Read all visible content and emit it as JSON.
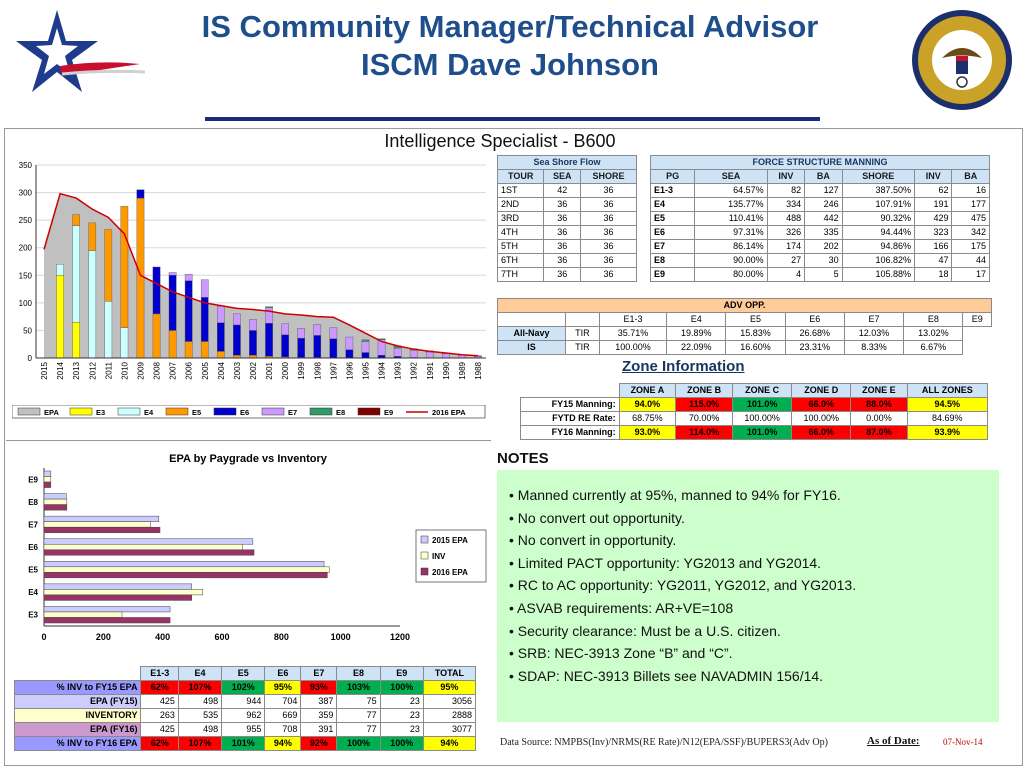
{
  "title_line1": "IS Community Manager/Technical Advisor",
  "title_line2": "ISCM Dave Johnson",
  "main_title": "Intelligence Specialist - B600",
  "colors": {
    "title_blue": "#1f4e8c",
    "epa_gray": "#c0c0c0",
    "e3_yellow": "#ffff00",
    "e4_lightblue": "#ccffff",
    "e5_orange": "#ff9900",
    "e6_blue": "#0000cc",
    "e7_lavender": "#cc99ff",
    "e8_green": "#339966",
    "e9_maroon": "#800000",
    "epa2016_red": "#cc0000",
    "red": "#ff0000",
    "green": "#00b050",
    "yellow": "#ffff00"
  },
  "sea_shore": {
    "caption": "Sea Shore Flow",
    "headers": [
      "TOUR",
      "SEA",
      "SHORE"
    ],
    "rows": [
      [
        "1ST",
        "42",
        "36"
      ],
      [
        "2ND",
        "36",
        "36"
      ],
      [
        "3RD",
        "36",
        "36"
      ],
      [
        "4TH",
        "36",
        "36"
      ],
      [
        "5TH",
        "36",
        "36"
      ],
      [
        "6TH",
        "36",
        "36"
      ],
      [
        "7TH",
        "36",
        "36"
      ]
    ]
  },
  "force_structure": {
    "caption": "FORCE STRUCTURE MANNING",
    "headers": [
      "PG",
      "SEA",
      "INV",
      "BA",
      "SHORE",
      "INV",
      "BA"
    ],
    "rows": [
      [
        "E1-3",
        "64.57%",
        "82",
        "127",
        "387.50%",
        "62",
        "16"
      ],
      [
        "E4",
        "135.77%",
        "334",
        "246",
        "107.91%",
        "191",
        "177"
      ],
      [
        "E5",
        "110.41%",
        "488",
        "442",
        "90.32%",
        "429",
        "475"
      ],
      [
        "E6",
        "97.31%",
        "326",
        "335",
        "94.44%",
        "323",
        "342"
      ],
      [
        "E7",
        "86.14%",
        "174",
        "202",
        "94.86%",
        "166",
        "175"
      ],
      [
        "E8",
        "90.00%",
        "27",
        "30",
        "106.82%",
        "47",
        "44"
      ],
      [
        "E9",
        "80.00%",
        "4",
        "5",
        "105.88%",
        "18",
        "17"
      ]
    ]
  },
  "adv_opp": {
    "caption": "ADV OPP.",
    "headers": [
      "",
      "",
      "E1-3",
      "E4",
      "E5",
      "E6",
      "E7",
      "E8",
      "E9"
    ],
    "rows": [
      [
        "All-Navy",
        "TIR",
        "35.71%",
        "19.89%",
        "15.83%",
        "26.68%",
        "12.03%",
        "13.02%"
      ],
      [
        "IS",
        "TIR",
        "100.00%",
        "22.09%",
        "16.60%",
        "23.31%",
        "8.33%",
        "6.67%"
      ]
    ]
  },
  "zone_info": {
    "caption": "Zone Information",
    "headers": [
      "",
      "ZONE A",
      "ZONE B",
      "ZONE C",
      "ZONE D",
      "ZONE E",
      "ALL ZONES"
    ],
    "rows": [
      {
        "label": "FY15 Manning:",
        "cells": [
          "94.0%",
          "115.0%",
          "101.0%",
          "66.0%",
          "88.0%",
          "94.5%"
        ],
        "fills": [
          "yellow",
          "red",
          "green",
          "red",
          "red",
          "yellow"
        ]
      },
      {
        "label": "FYTD RE Rate:",
        "cells": [
          "68.75%",
          "70.00%",
          "100.00%",
          "100.00%",
          "0.00%",
          "84.69%"
        ],
        "fills": [
          "",
          "",
          "",
          "",
          "",
          ""
        ]
      },
      {
        "label": "FY16 Manning:",
        "cells": [
          "93.0%",
          "114.0%",
          "101.0%",
          "66.0%",
          "87.0%",
          "93.9%"
        ],
        "fills": [
          "yellow",
          "red",
          "green",
          "red",
          "red",
          "yellow"
        ]
      }
    ]
  },
  "notes": {
    "heading": "NOTES",
    "items": [
      "• Manned currently at 95%, manned to 94% for FY16.",
      "• No convert out opportunity.",
      "• No convert in opportunity.",
      "• Limited PACT opportunity:  YG2013 and YG2014.",
      "• RC to AC opportunity: YG2011, YG2012, and YG2013.",
      "• ASVAB requirements: AR+VE=108",
      "• Security clearance:  Must be a U.S. citizen.",
      "• SRB: NEC-3913 Zone “B” and “C”.",
      "• SDAP: NEC-3913 Billets see NAVADMIN 156/14."
    ]
  },
  "summary_table": {
    "headers": [
      "",
      "E1-3",
      "E4",
      "E5",
      "E6",
      "E7",
      "E8",
      "E9",
      "TOTAL"
    ],
    "rows": [
      {
        "label": "% INV to FY15 EPA",
        "cells": [
          "62%",
          "107%",
          "102%",
          "95%",
          "93%",
          "103%",
          "100%",
          "95%"
        ],
        "fills": [
          "red",
          "red",
          "green",
          "yellow",
          "red",
          "green",
          "green",
          "yellow"
        ],
        "label_bg": "#9999ff"
      },
      {
        "label": "EPA (FY15)",
        "cells": [
          "425",
          "498",
          "944",
          "704",
          "387",
          "75",
          "23",
          "3056"
        ],
        "fills": [
          "",
          "",
          "",
          "",
          "",
          "",
          "",
          ""
        ],
        "label_bg": "#ccccff"
      },
      {
        "label": "INVENTORY",
        "cells": [
          "263",
          "535",
          "962",
          "669",
          "359",
          "77",
          "23",
          "2888"
        ],
        "fills": [
          "",
          "",
          "",
          "",
          "",
          "",
          "",
          ""
        ],
        "label_bg": "#ffffcc"
      },
      {
        "label": "EPA (FY16)",
        "cells": [
          "425",
          "498",
          "955",
          "708",
          "391",
          "77",
          "23",
          "3077"
        ],
        "fills": [
          "",
          "",
          "",
          "",
          "",
          "",
          "",
          ""
        ],
        "label_bg": "#cc99cc"
      },
      {
        "label": "% INV to FY16 EPA",
        "cells": [
          "62%",
          "107%",
          "101%",
          "94%",
          "92%",
          "100%",
          "100%",
          "94%"
        ],
        "fills": [
          "red",
          "red",
          "green",
          "yellow",
          "red",
          "green",
          "green",
          "yellow"
        ],
        "label_bg": "#9999ff"
      }
    ]
  },
  "footer": {
    "source": "Data Source: NMPBS(Inv)/NRMS(RE Rate)/N12(EPA/SSF)/BUPERS3(Adv Op)",
    "as_of": "As of Date:",
    "date": "07-Nov-14"
  },
  "chart_data": [
    {
      "type": "bar",
      "stacked": true,
      "title": "",
      "ylim": [
        0,
        350
      ],
      "yticks": [
        0,
        50,
        100,
        150,
        200,
        250,
        300,
        350
      ],
      "grid": true,
      "legend_position": "bottom",
      "categories": [
        "2015",
        "2014",
        "2013",
        "2012",
        "2011",
        "2010",
        "2009",
        "2008",
        "2007",
        "2006",
        "2005",
        "2004",
        "2003",
        "2002",
        "2001",
        "2000",
        "1999",
        "1998",
        "1997",
        "1996",
        "1995",
        "1994",
        "1993",
        "1992",
        "1991",
        "1990",
        "1989",
        "1988"
      ],
      "epa_area": [
        197,
        298,
        290,
        270,
        255,
        225,
        150,
        135,
        120,
        110,
        100,
        95,
        90,
        88,
        85,
        80,
        78,
        75,
        74,
        60,
        45,
        30,
        22,
        16,
        12,
        9,
        6,
        4
      ],
      "series": [
        {
          "name": "E3",
          "values": [
            0,
            150,
            65,
            0,
            0,
            0,
            0,
            0,
            0,
            0,
            0,
            0,
            0,
            0,
            0,
            0,
            0,
            0,
            0,
            0,
            0,
            0,
            0,
            0,
            0,
            0,
            0,
            0
          ]
        },
        {
          "name": "E4",
          "values": [
            0,
            20,
            175,
            195,
            103,
            55,
            0,
            0,
            0,
            0,
            0,
            0,
            0,
            0,
            0,
            0,
            0,
            0,
            0,
            0,
            0,
            0,
            0,
            0,
            0,
            0,
            0,
            0
          ]
        },
        {
          "name": "E5",
          "values": [
            0,
            0,
            20,
            50,
            130,
            220,
            290,
            80,
            50,
            30,
            30,
            12,
            5,
            5,
            3,
            2,
            1,
            1,
            0,
            0,
            0,
            0,
            0,
            0,
            0,
            0,
            0,
            0
          ]
        },
        {
          "name": "E6",
          "values": [
            0,
            0,
            0,
            0,
            0,
            0,
            15,
            85,
            100,
            110,
            80,
            52,
            55,
            45,
            60,
            40,
            35,
            40,
            35,
            15,
            10,
            5,
            3,
            1,
            0,
            0,
            0,
            0
          ]
        },
        {
          "name": "E7",
          "values": [
            0,
            0,
            0,
            0,
            0,
            0,
            0,
            0,
            5,
            12,
            32,
            30,
            20,
            20,
            28,
            20,
            18,
            20,
            20,
            23,
            20,
            28,
            15,
            13,
            11,
            8,
            5,
            3
          ]
        },
        {
          "name": "E8",
          "values": [
            0,
            0,
            0,
            0,
            0,
            0,
            0,
            0,
            0,
            0,
            0,
            0,
            0,
            0,
            2,
            0,
            0,
            0,
            0,
            0,
            3,
            2,
            4,
            3,
            2,
            0,
            0,
            0
          ]
        },
        {
          "name": "E9",
          "values": [
            0,
            0,
            0,
            0,
            0,
            0,
            0,
            0,
            0,
            0,
            0,
            0,
            0,
            0,
            0,
            0,
            0,
            0,
            0,
            0,
            0,
            0,
            0,
            0,
            0,
            1,
            1,
            1
          ]
        }
      ],
      "legend": [
        "EPA",
        "E3",
        "E4",
        "E5",
        "E6",
        "E7",
        "E8",
        "E9",
        "2016 EPA"
      ]
    },
    {
      "type": "bar",
      "orientation": "horizontal",
      "title": "EPA by Paygrade vs Inventory",
      "xlim": [
        0,
        1200
      ],
      "xticks": [
        0,
        200,
        400,
        600,
        800,
        1000,
        1200
      ],
      "legend_position": "right",
      "categories": [
        "E3",
        "E4",
        "E5",
        "E6",
        "E7",
        "E8",
        "E9"
      ],
      "series": [
        {
          "name": "2015 EPA",
          "values": [
            425,
            498,
            944,
            704,
            387,
            75,
            23
          ]
        },
        {
          "name": "INV",
          "values": [
            263,
            535,
            962,
            669,
            359,
            77,
            23
          ]
        },
        {
          "name": "2016 EPA",
          "values": [
            425,
            498,
            955,
            708,
            391,
            77,
            23
          ]
        }
      ]
    }
  ]
}
